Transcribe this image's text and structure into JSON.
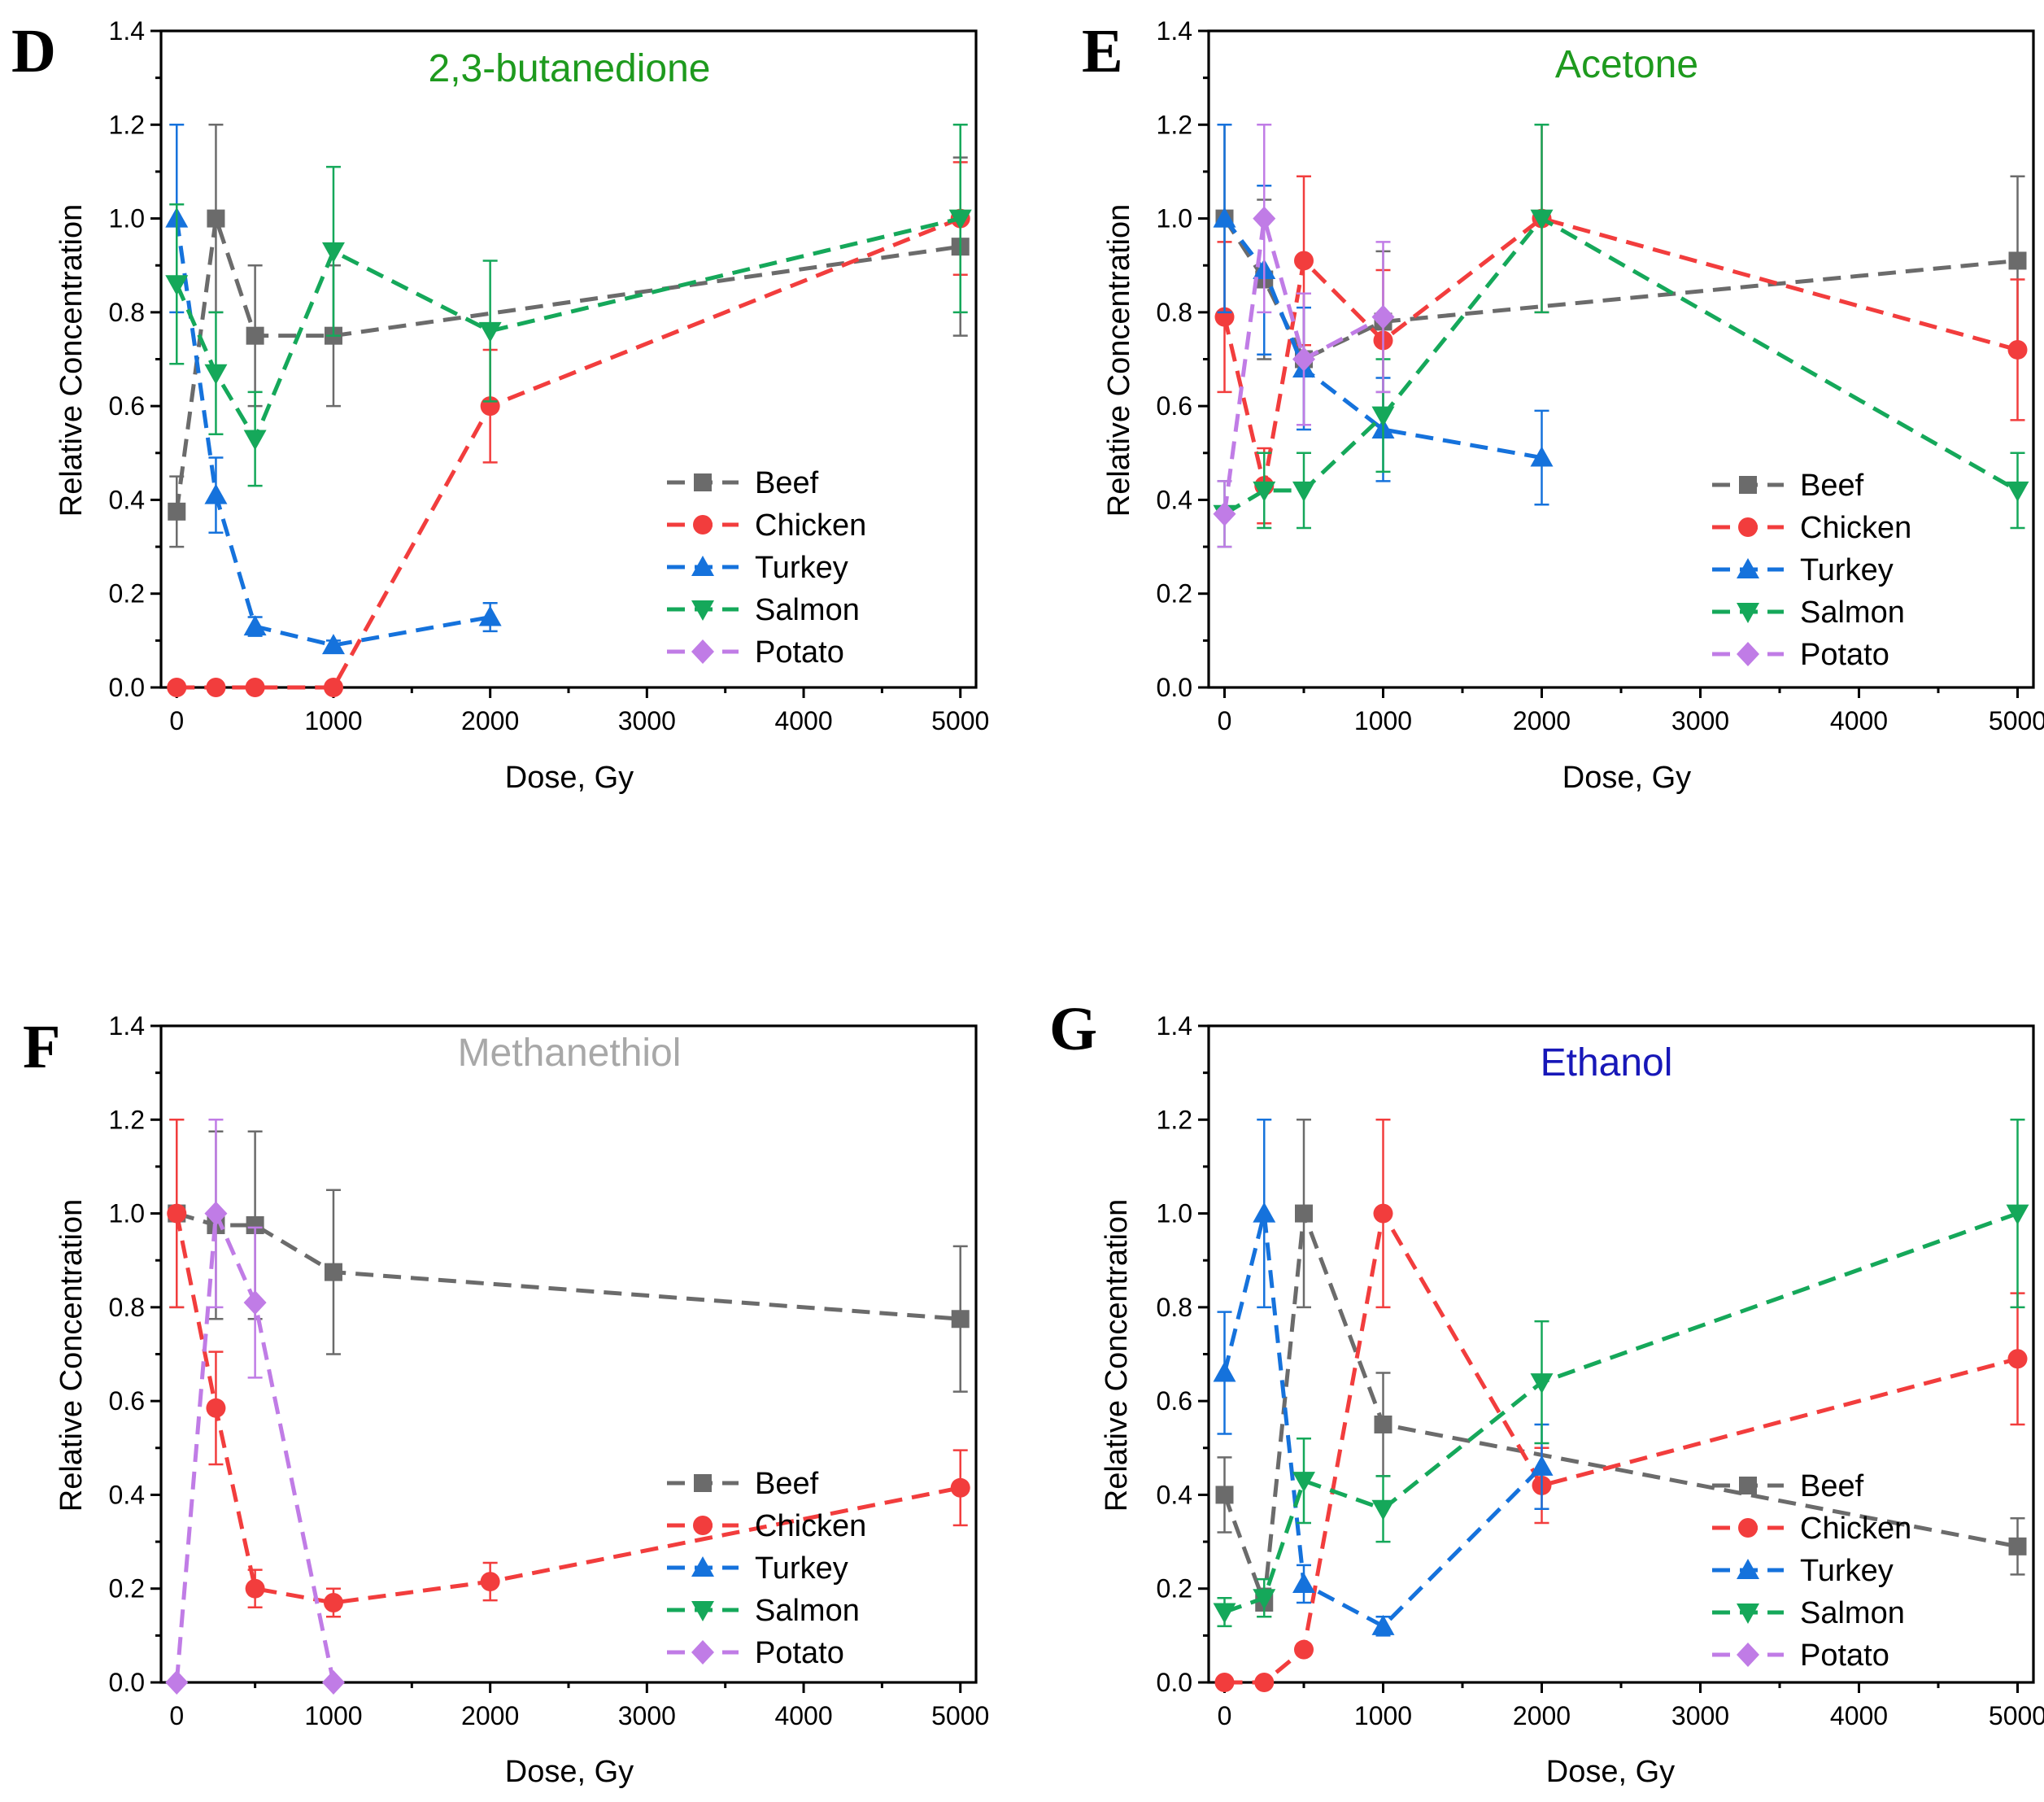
{
  "colors": {
    "Beef": "#6b6b6b",
    "Chicken": "#f23d3d",
    "Turkey": "#1572dc",
    "Salmon": "#15a85a",
    "Potato": "#c07ce6"
  },
  "markers": {
    "Beef": "square",
    "Chicken": "circle",
    "Turkey": "triangle-up",
    "Salmon": "triangle-down",
    "Potato": "diamond"
  },
  "chart_data": [
    {
      "type": "line",
      "panel": "D",
      "title": "2,3-butanedione",
      "title_color": "#1e9a1e",
      "xlabel": "Dose, Gy",
      "ylabel": "Relative Concentration",
      "xlim": [
        -100,
        5100
      ],
      "ylim": [
        0,
        1.4
      ],
      "xticks": [
        0,
        1000,
        2000,
        3000,
        4000,
        5000
      ],
      "yticks": [
        0.0,
        0.2,
        0.4,
        0.6,
        0.8,
        1.0,
        1.2,
        1.4
      ],
      "ytick_labels": [
        "0.0",
        "0.2",
        "0.4",
        "0.6",
        "0.8",
        "1.0",
        "1.2",
        "1.4"
      ],
      "legend": [
        "Beef",
        "Chicken",
        "Turkey",
        "Salmon",
        "Potato"
      ],
      "legend_position": "bottom-right",
      "series": [
        {
          "name": "Beef",
          "x": [
            0,
            250,
            500,
            1000,
            5000
          ],
          "y": [
            0.375,
            1.0,
            0.75,
            0.75,
            0.94
          ],
          "err": [
            0.075,
            0.2,
            0.15,
            0.15,
            0.19
          ]
        },
        {
          "name": "Chicken",
          "x": [
            0,
            250,
            500,
            1000,
            2000,
            5000
          ],
          "y": [
            0.0,
            0.0,
            0.0,
            0.0,
            0.6,
            1.0
          ],
          "err": [
            0,
            0,
            0,
            0,
            0.12,
            0.12
          ]
        },
        {
          "name": "Turkey",
          "x": [
            0,
            250,
            500,
            1000,
            2000
          ],
          "y": [
            1.0,
            0.41,
            0.13,
            0.09,
            0.15
          ],
          "err": [
            0.2,
            0.08,
            0.02,
            0.01,
            0.03
          ]
        },
        {
          "name": "Salmon",
          "x": [
            0,
            250,
            500,
            1000,
            2000,
            5000
          ],
          "y": [
            0.86,
            0.67,
            0.53,
            0.93,
            0.76,
            1.0
          ],
          "err": [
            0.17,
            0.13,
            0.1,
            0.18,
            0.15,
            0.2
          ]
        },
        {
          "name": "Potato",
          "x": [],
          "y": [],
          "err": []
        }
      ]
    },
    {
      "type": "line",
      "panel": "E",
      "title": "Acetone",
      "title_color": "#1e9a1e",
      "xlabel": "Dose, Gy",
      "ylabel": "Relative Concentration",
      "xlim": [
        -100,
        5100
      ],
      "ylim": [
        0,
        1.4
      ],
      "xticks": [
        0,
        1000,
        2000,
        3000,
        4000,
        5000
      ],
      "yticks": [
        0.0,
        0.2,
        0.4,
        0.6,
        0.8,
        1.0,
        1.2,
        1.4
      ],
      "ytick_labels": [
        "0.0",
        "0.2",
        "0.4",
        "0.6",
        "0.8",
        "1.0",
        "1.2",
        "1.4"
      ],
      "legend": [
        "Beef",
        "Chicken",
        "Turkey",
        "Salmon",
        "Potato"
      ],
      "legend_position": "bottom-right",
      "series": [
        {
          "name": "Beef",
          "x": [
            0,
            250,
            500,
            1000,
            5000
          ],
          "y": [
            1.0,
            0.87,
            0.7,
            0.78,
            0.91
          ],
          "err": [
            0.2,
            0.17,
            0.14,
            0.15,
            0.18
          ]
        },
        {
          "name": "Chicken",
          "x": [
            0,
            250,
            500,
            1000,
            2000,
            5000
          ],
          "y": [
            0.79,
            0.43,
            0.91,
            0.74,
            1.0,
            0.72
          ],
          "err": [
            0.16,
            0.08,
            0.18,
            0.15,
            0.2,
            0.15
          ]
        },
        {
          "name": "Turkey",
          "x": [
            0,
            250,
            500,
            1000,
            2000
          ],
          "y": [
            1.0,
            0.89,
            0.68,
            0.55,
            0.49
          ],
          "err": [
            0.2,
            0.18,
            0.13,
            0.11,
            0.1
          ]
        },
        {
          "name": "Salmon",
          "x": [
            0,
            250,
            500,
            1000,
            2000,
            5000
          ],
          "y": [
            0.37,
            0.42,
            0.42,
            0.58,
            1.0,
            0.42
          ],
          "err": [
            0.07,
            0.08,
            0.08,
            0.12,
            0.2,
            0.08
          ]
        },
        {
          "name": "Potato",
          "x": [
            0,
            250,
            500,
            1000
          ],
          "y": [
            0.37,
            1.0,
            0.7,
            0.79
          ],
          "err": [
            0.07,
            0.2,
            0.14,
            0.16
          ]
        }
      ]
    },
    {
      "type": "line",
      "panel": "F",
      "title": "Methanethiol",
      "title_color": "#a8a8a8",
      "xlabel": "Dose, Gy",
      "ylabel": "Relative Concentration",
      "xlim": [
        -100,
        5100
      ],
      "ylim": [
        0,
        1.4
      ],
      "xticks": [
        0,
        1000,
        2000,
        3000,
        4000,
        5000
      ],
      "yticks": [
        0.0,
        0.2,
        0.4,
        0.6,
        0.8,
        1.0,
        1.2,
        1.4
      ],
      "ytick_labels": [
        "0.0",
        "0.2",
        "0.4",
        "0.6",
        "0.8",
        "1.0",
        "1.2",
        "1.4"
      ],
      "legend": [
        "Beef",
        "Chicken",
        "Turkey",
        "Salmon",
        "Potato"
      ],
      "legend_position": "bottom-right",
      "series": [
        {
          "name": "Beef",
          "x": [
            0,
            250,
            500,
            1000,
            5000
          ],
          "y": [
            1.0,
            0.975,
            0.975,
            0.875,
            0.775
          ],
          "err": [
            0.2,
            0.2,
            0.2,
            0.175,
            0.155
          ]
        },
        {
          "name": "Chicken",
          "x": [
            0,
            250,
            500,
            1000,
            2000,
            5000
          ],
          "y": [
            1.0,
            0.585,
            0.2,
            0.17,
            0.215,
            0.415
          ],
          "err": [
            0.2,
            0.12,
            0.04,
            0.03,
            0.04,
            0.08
          ]
        },
        {
          "name": "Turkey",
          "x": [],
          "y": [],
          "err": []
        },
        {
          "name": "Salmon",
          "x": [],
          "y": [],
          "err": []
        },
        {
          "name": "Potato",
          "x": [
            0,
            250,
            500,
            1000
          ],
          "y": [
            0.0,
            1.0,
            0.81,
            0.0
          ],
          "err": [
            0,
            0.2,
            0.16,
            0
          ]
        }
      ]
    },
    {
      "type": "line",
      "panel": "G",
      "title": "Ethanol",
      "title_color": "#1717b8",
      "xlabel": "Dose, Gy",
      "ylabel": "Relative Concentration",
      "xlim": [
        -100,
        5100
      ],
      "ylim": [
        0,
        1.4
      ],
      "xticks": [
        0,
        1000,
        2000,
        3000,
        4000,
        5000
      ],
      "yticks": [
        0.0,
        0.2,
        0.4,
        0.6,
        0.8,
        1.0,
        1.2,
        1.4
      ],
      "ytick_labels": [
        "0.0",
        "0.2",
        "0.4",
        "0.6",
        "0.8",
        "1.0",
        "1.2",
        "1.4"
      ],
      "legend": [
        "Beef",
        "Chicken",
        "Turkey",
        "Salmon",
        "Potato"
      ],
      "legend_position": "bottom-right",
      "series": [
        {
          "name": "Beef",
          "x": [
            0,
            250,
            500,
            1000,
            5000
          ],
          "y": [
            0.4,
            0.17,
            1.0,
            0.55,
            0.29
          ],
          "err": [
            0.08,
            0.03,
            0.2,
            0.11,
            0.06
          ]
        },
        {
          "name": "Chicken",
          "x": [
            0,
            250,
            500,
            1000,
            2000,
            5000
          ],
          "y": [
            0.0,
            0.0,
            0.07,
            1.0,
            0.42,
            0.69
          ],
          "err": [
            0,
            0,
            0,
            0.2,
            0.08,
            0.14
          ]
        },
        {
          "name": "Turkey",
          "x": [
            0,
            250,
            500,
            1000,
            2000
          ],
          "y": [
            0.66,
            1.0,
            0.21,
            0.12,
            0.46
          ],
          "err": [
            0.13,
            0.2,
            0.04,
            0.02,
            0.09
          ]
        },
        {
          "name": "Salmon",
          "x": [
            0,
            250,
            500,
            1000,
            2000,
            5000
          ],
          "y": [
            0.15,
            0.18,
            0.43,
            0.37,
            0.64,
            1.0
          ],
          "err": [
            0.03,
            0.04,
            0.09,
            0.07,
            0.13,
            0.2
          ]
        },
        {
          "name": "Potato",
          "x": [],
          "y": [],
          "err": []
        }
      ]
    }
  ]
}
